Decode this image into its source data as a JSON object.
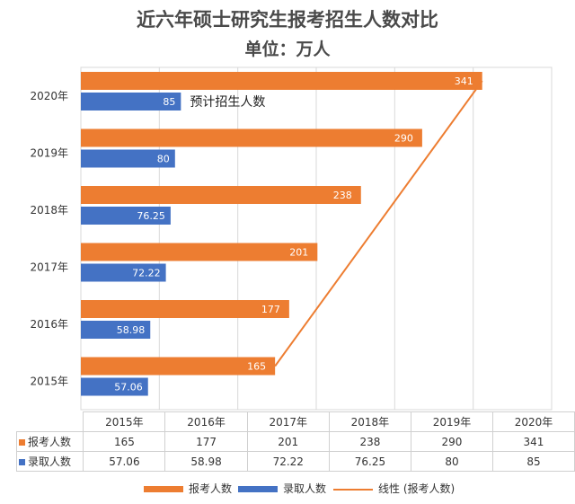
{
  "chart_data": {
    "type": "bar",
    "orientation": "horizontal",
    "title": "近六年硕士研究生报考招生人数对比",
    "subtitle": "单位：万人",
    "categories": [
      "2020年",
      "2019年",
      "2018年",
      "2017年",
      "2016年",
      "2015年"
    ],
    "series": [
      {
        "name": "报考人数",
        "color": "#ED7D31",
        "values": [
          341,
          290,
          238,
          201,
          177,
          165
        ]
      },
      {
        "name": "录取人数",
        "color": "#4472C4",
        "values": [
          85,
          80,
          76.25,
          72.22,
          58.98,
          57.06
        ]
      }
    ],
    "value_labels": {
      "报考人数": [
        "341",
        "290",
        "238",
        "201",
        "177",
        "165"
      ],
      "录取人数": [
        "85",
        "80",
        "76.25",
        "72.22",
        "58.98",
        "57.06"
      ]
    },
    "trendline": {
      "name": "线性 (报考人数)",
      "color": "#ED7D31"
    },
    "annotation": "预计招生人数",
    "xlim": [
      0,
      400
    ],
    "grid": true,
    "legend_position": "bottom"
  },
  "table": {
    "years": [
      "2015年",
      "2016年",
      "2017年",
      "2018年",
      "2019年",
      "2020年"
    ],
    "rows": [
      {
        "label": "报考人数",
        "color": "#ED7D31",
        "cells": [
          "165",
          "177",
          "201",
          "238",
          "290",
          "341"
        ]
      },
      {
        "label": "录取人数",
        "color": "#4472C4",
        "cells": [
          "57.06",
          "58.98",
          "72.22",
          "76.25",
          "80",
          "85"
        ]
      }
    ]
  },
  "legend": [
    "报考人数",
    "录取人数",
    "线性 (报考人数)"
  ]
}
